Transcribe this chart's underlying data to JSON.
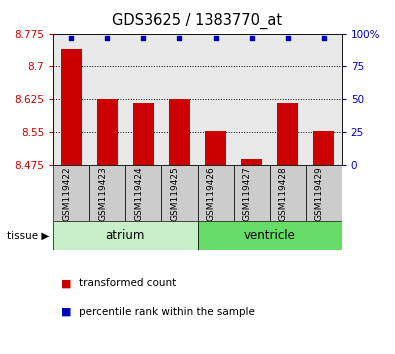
{
  "title": "GDS3625 / 1383770_at",
  "samples": [
    "GSM119422",
    "GSM119423",
    "GSM119424",
    "GSM119425",
    "GSM119426",
    "GSM119427",
    "GSM119428",
    "GSM119429"
  ],
  "red_values": [
    8.74,
    8.625,
    8.615,
    8.625,
    8.553,
    8.487,
    8.615,
    8.553
  ],
  "blue_values": [
    97,
    97,
    97,
    97,
    97,
    97,
    97,
    97
  ],
  "ylim_left": [
    8.475,
    8.775
  ],
  "ylim_right": [
    0,
    100
  ],
  "yticks_left": [
    8.475,
    8.55,
    8.625,
    8.7,
    8.775
  ],
  "yticks_right": [
    0,
    25,
    50,
    75,
    100
  ],
  "ytick_labels_left": [
    "8.475",
    "8.55",
    "8.625",
    "8.7",
    "8.775"
  ],
  "ytick_labels_right": [
    "0",
    "25",
    "50",
    "75",
    "100%"
  ],
  "hlines": [
    8.7,
    8.625,
    8.55
  ],
  "atrium_color_light": "#c8f0c8",
  "ventricle_color_dark": "#66dd66",
  "bar_color": "#cc0000",
  "dot_color": "#0000bb",
  "bar_bottom": 8.475,
  "bar_width": 0.6,
  "col_gray": "#cccccc",
  "legend_red_label": "transformed count",
  "legend_blue_label": "percentile rank within the sample"
}
